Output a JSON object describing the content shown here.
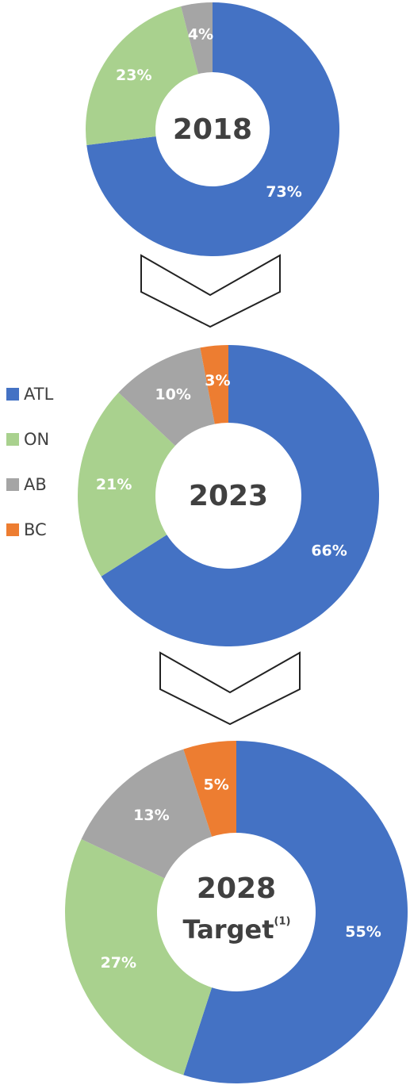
{
  "chart_data": [
    {
      "type": "donut",
      "center_label": "2018",
      "categories": [
        "ATL",
        "ON",
        "AB"
      ],
      "values": [
        73,
        23,
        4
      ],
      "value_labels": [
        "73%",
        "23%",
        "4%"
      ],
      "colors": [
        "#4472c4",
        "#a9d18e",
        "#a5a5a5"
      ]
    },
    {
      "type": "donut",
      "center_label": "2023",
      "categories": [
        "ATL",
        "ON",
        "AB",
        "BC"
      ],
      "values": [
        66,
        21,
        10,
        3
      ],
      "value_labels": [
        "66%",
        "21%",
        "10%",
        "3%"
      ],
      "colors": [
        "#4472c4",
        "#a9d18e",
        "#a5a5a5",
        "#ed7d31"
      ],
      "legend": "left"
    },
    {
      "type": "donut",
      "center_label": "2028",
      "center_sublabel": "Target",
      "center_note": "(1)",
      "categories": [
        "ATL",
        "ON",
        "AB",
        "BC"
      ],
      "values": [
        55,
        27,
        13,
        5
      ],
      "value_labels": [
        "55%",
        "27%",
        "13%",
        "5%"
      ],
      "colors": [
        "#4472c4",
        "#a9d18e",
        "#a5a5a5",
        "#ed7d31"
      ]
    }
  ]
}
